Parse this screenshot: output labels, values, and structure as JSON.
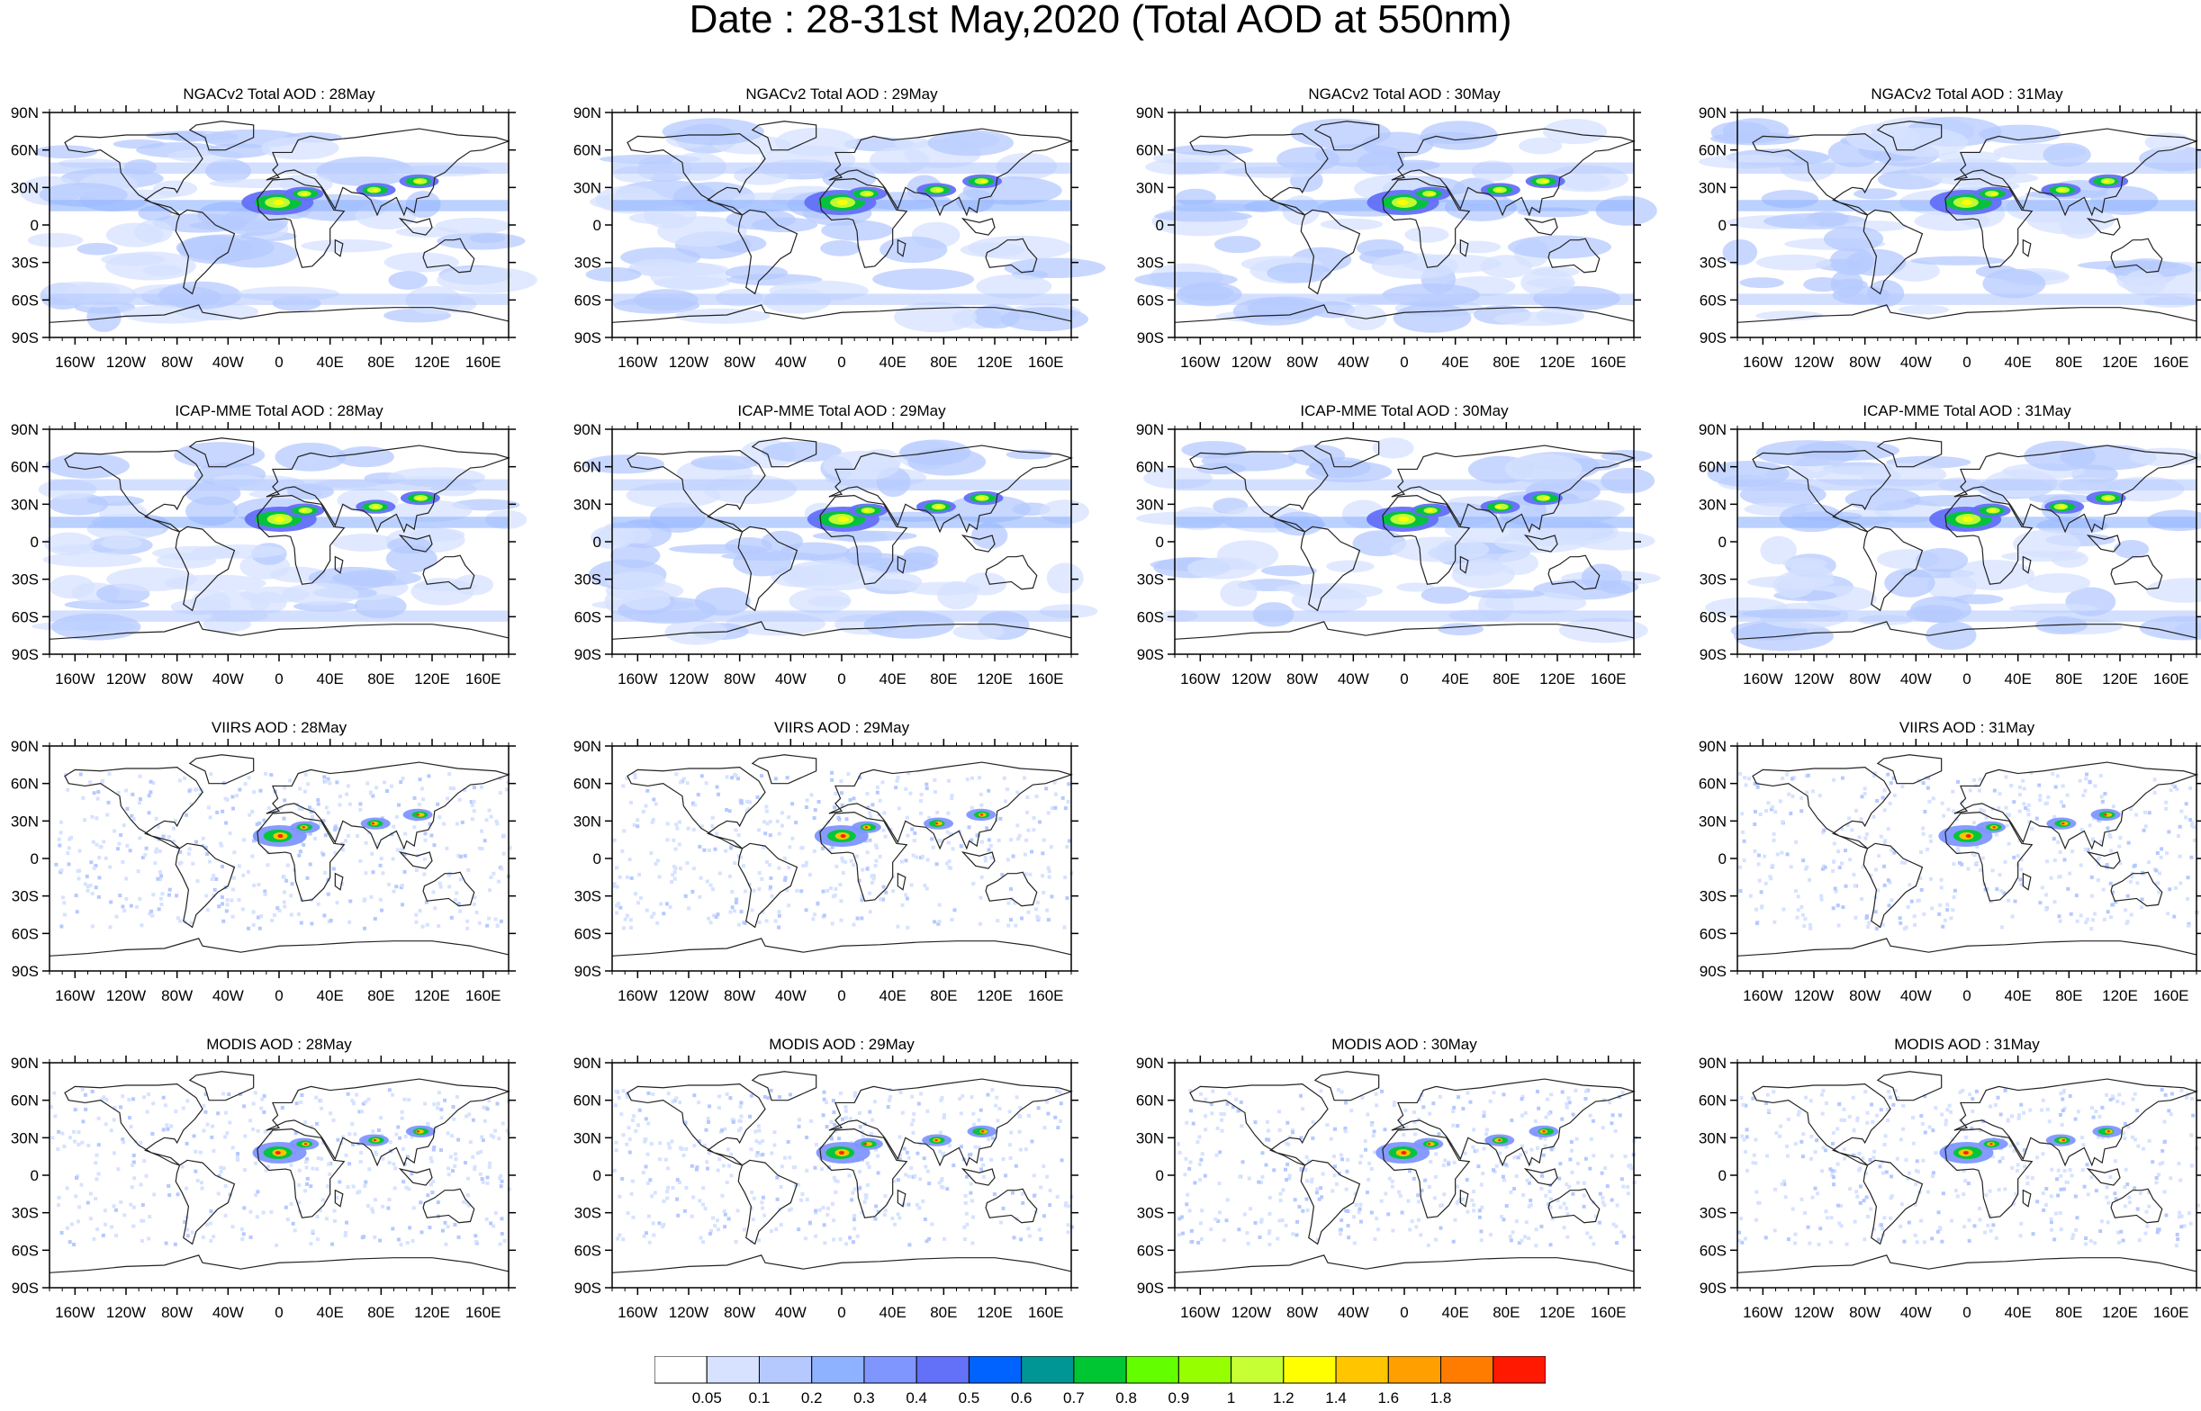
{
  "title": "Date : 28-31st May,2020 (Total AOD at 550nm)",
  "rows": [
    {
      "product": "NGACv2",
      "panels": [
        {
          "title": "NGACv2 Total AOD : 28May",
          "present": true
        },
        {
          "title": "NGACv2 Total AOD : 29May",
          "present": true
        },
        {
          "title": "NGACv2 Total AOD : 30May",
          "present": true
        },
        {
          "title": "NGACv2 Total AOD : 31May",
          "present": true
        }
      ]
    },
    {
      "product": "ICAP-MME",
      "panels": [
        {
          "title": "ICAP-MME Total AOD : 28May",
          "present": true
        },
        {
          "title": "ICAP-MME Total AOD : 29May",
          "present": true
        },
        {
          "title": "ICAP-MME Total AOD : 30May",
          "present": true
        },
        {
          "title": "ICAP-MME Total AOD : 31May",
          "present": true
        }
      ]
    },
    {
      "product": "VIIRS",
      "panels": [
        {
          "title": "VIIRS AOD : 28May",
          "present": true
        },
        {
          "title": "VIIRS AOD : 29May",
          "present": true
        },
        {
          "title": "",
          "present": false
        },
        {
          "title": "VIIRS AOD : 31May",
          "present": true
        }
      ]
    },
    {
      "product": "MODIS",
      "panels": [
        {
          "title": "MODIS AOD : 28May",
          "present": true
        },
        {
          "title": "MODIS AOD : 29May",
          "present": true
        },
        {
          "title": "MODIS AOD : 30May",
          "present": true
        },
        {
          "title": "MODIS AOD : 31May",
          "present": true
        }
      ]
    }
  ],
  "lat_ticks": [
    "90N",
    "60N",
    "30N",
    "0",
    "30S",
    "60S",
    "90S"
  ],
  "lon_ticks": [
    "160W",
    "120W",
    "80W",
    "40W",
    "0",
    "40E",
    "80E",
    "120E",
    "160E"
  ],
  "colorbar": {
    "labels": [
      "0.05",
      "0.1",
      "0.2",
      "0.3",
      "0.4",
      "0.5",
      "0.6",
      "0.7",
      "0.8",
      "0.9",
      "1",
      "1.2",
      "1.4",
      "1.6",
      "1.8"
    ],
    "colors": [
      "#ffffff",
      "#d6e2ff",
      "#b5c9ff",
      "#8eb2ff",
      "#7f96ff",
      "#6370f8",
      "#0063ff",
      "#009696",
      "#00c633",
      "#63ff00",
      "#96ff00",
      "#c6ff33",
      "#ffff00",
      "#ffc600",
      "#ffa000",
      "#ff7c00",
      "#ff1900"
    ]
  }
}
